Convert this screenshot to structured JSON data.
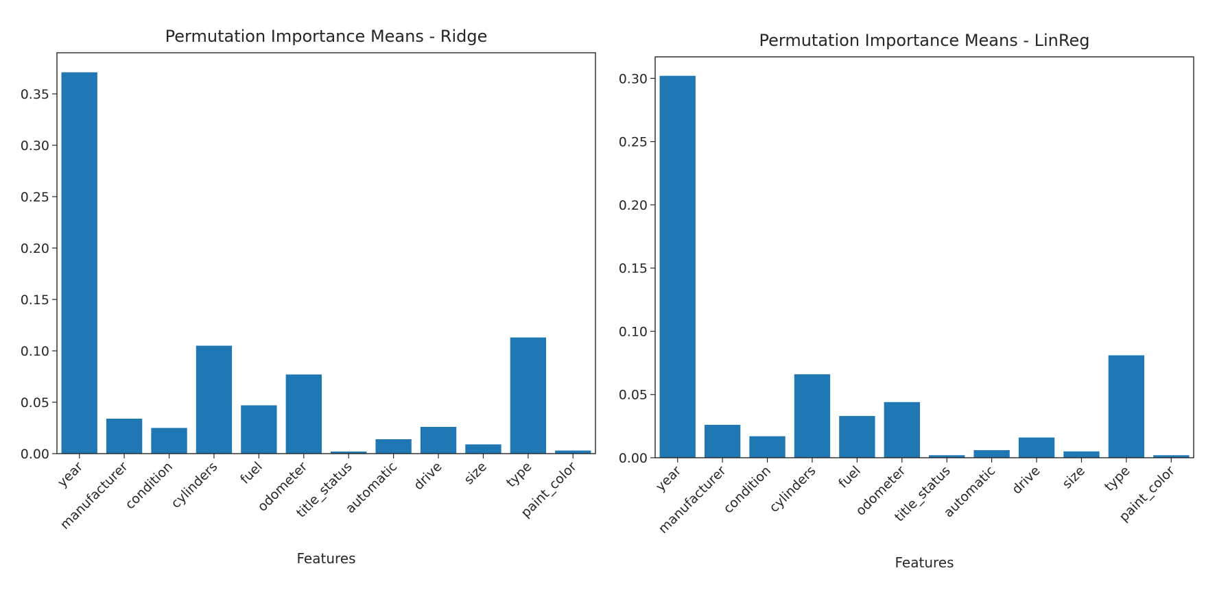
{
  "chart_data": [
    {
      "type": "bar",
      "title": "Permutation Importance Means - Ridge",
      "xlabel": "Features",
      "ylabel": "",
      "categories": [
        "year",
        "manufacturer",
        "condition",
        "cylinders",
        "fuel",
        "odometer",
        "title_status",
        "automatic",
        "drive",
        "size",
        "type",
        "paint_color"
      ],
      "values": [
        0.371,
        0.034,
        0.025,
        0.105,
        0.047,
        0.077,
        0.002,
        0.014,
        0.026,
        0.009,
        0.113,
        0.003
      ],
      "ylim": [
        0,
        0.39
      ],
      "yticks": [
        0.0,
        0.05,
        0.1,
        0.15,
        0.2,
        0.25,
        0.3,
        0.35
      ],
      "ytick_labels": [
        "0.00",
        "0.05",
        "0.10",
        "0.15",
        "0.20",
        "0.25",
        "0.30",
        "0.35"
      ],
      "color": "#1f77b4",
      "grid": false,
      "legend": "none"
    },
    {
      "type": "bar",
      "title": "Permutation Importance Means - LinReg",
      "xlabel": "Features",
      "ylabel": "",
      "categories": [
        "year",
        "manufacturer",
        "condition",
        "cylinders",
        "fuel",
        "odometer",
        "title_status",
        "automatic",
        "drive",
        "size",
        "type",
        "paint_color"
      ],
      "values": [
        0.302,
        0.026,
        0.017,
        0.066,
        0.033,
        0.044,
        0.002,
        0.006,
        0.016,
        0.005,
        0.081,
        0.002
      ],
      "ylim": [
        0,
        0.317
      ],
      "yticks": [
        0.0,
        0.05,
        0.1,
        0.15,
        0.2,
        0.25,
        0.3
      ],
      "ytick_labels": [
        "0.00",
        "0.05",
        "0.10",
        "0.15",
        "0.20",
        "0.25",
        "0.30"
      ],
      "color": "#1f77b4",
      "grid": false,
      "legend": "none"
    }
  ]
}
